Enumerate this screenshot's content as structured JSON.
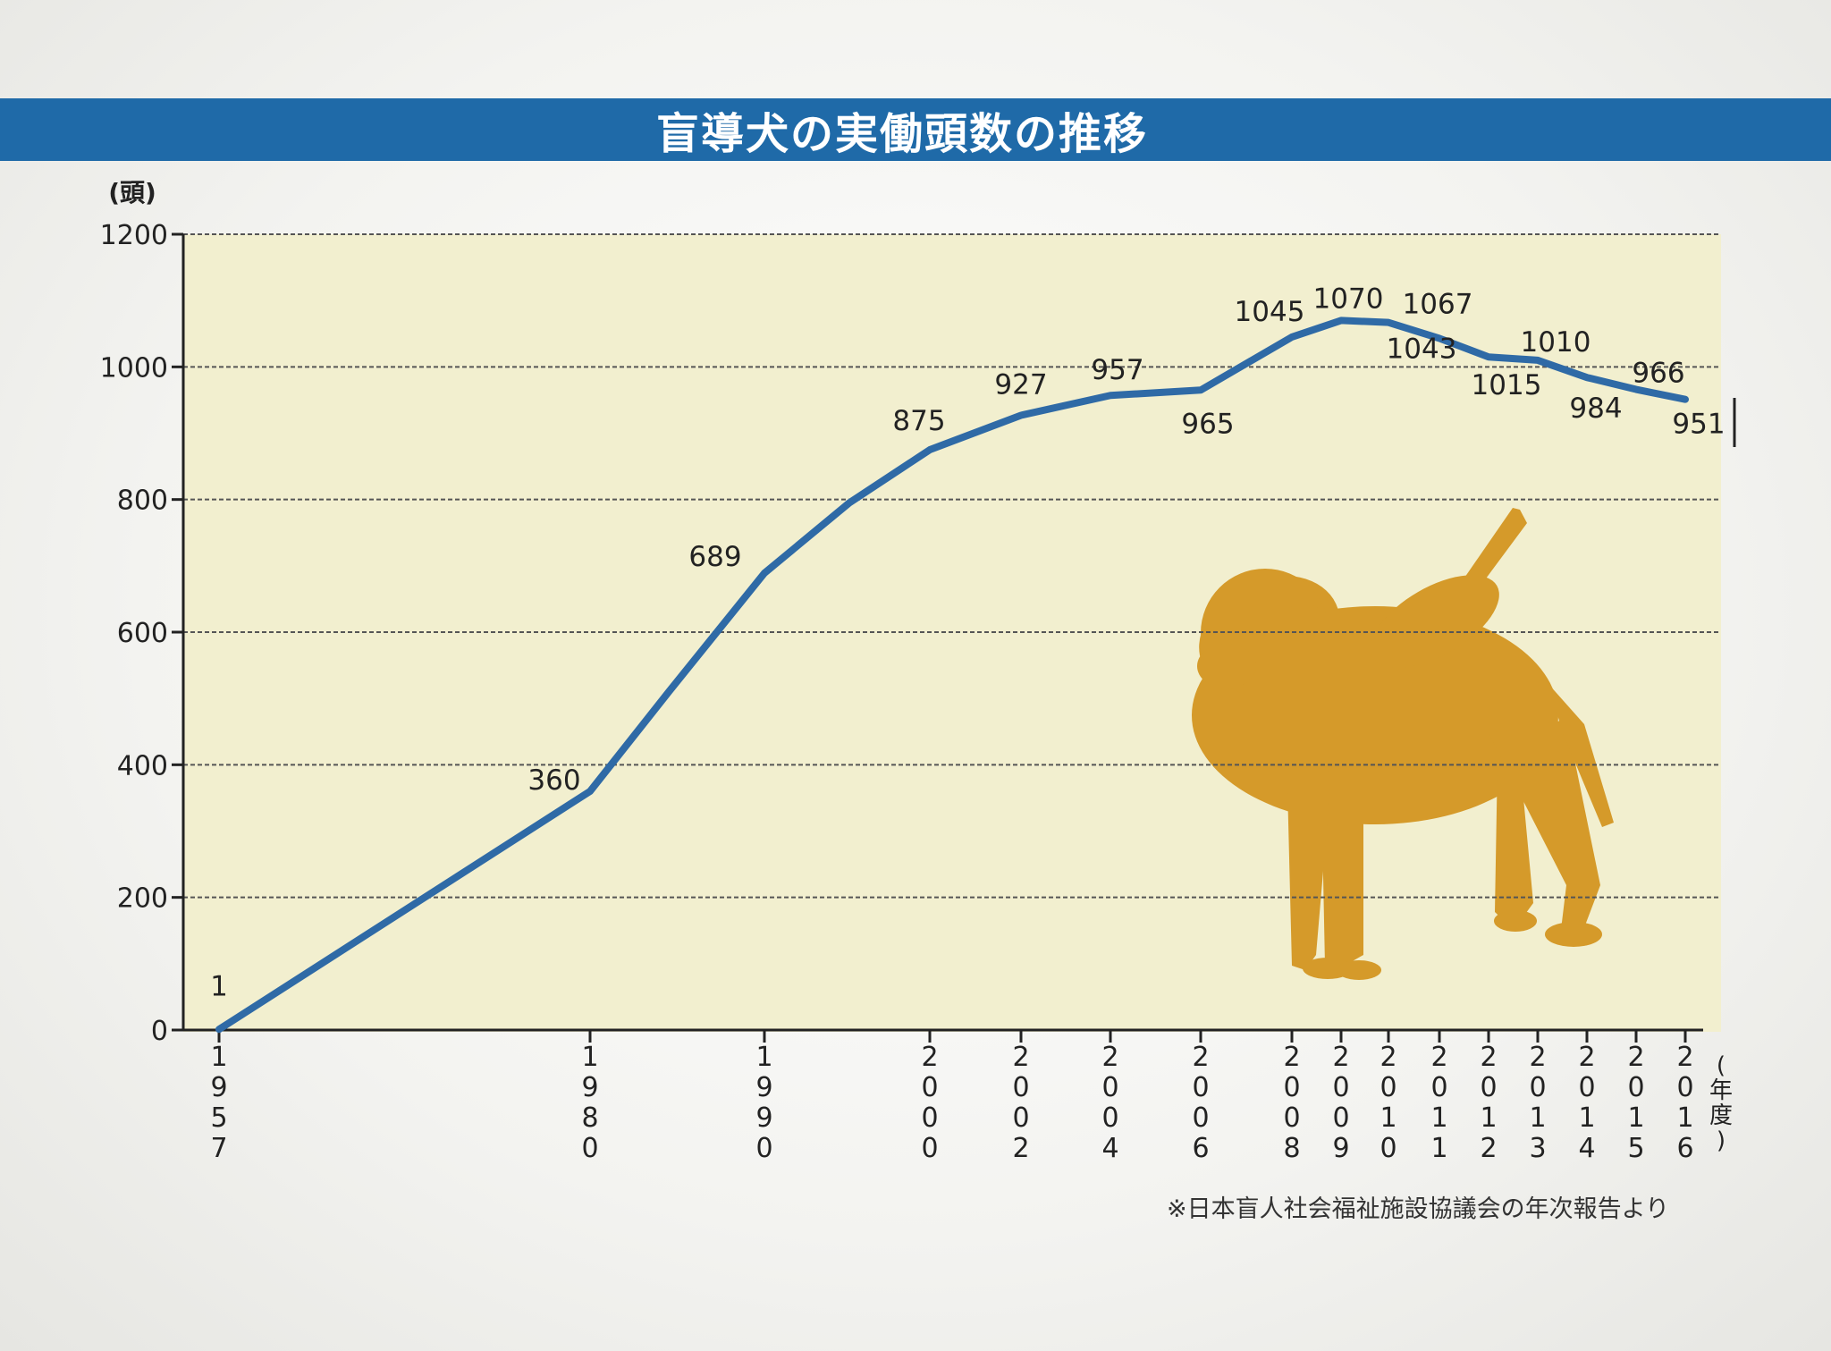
{
  "title": "盲導犬の実働頭数の推移",
  "source_note": "※日本盲人社会福祉施設協議会の年次報告より",
  "colors": {
    "title_bar": "#1f6aa8",
    "line": "#2f6aa6",
    "plot_bg": "#f2efcf",
    "dog": "#d59a2a"
  },
  "chart_data": {
    "type": "line",
    "title": "盲導犬の実働頭数の推移",
    "y_unit_label": "(頭)",
    "x_unit_label": "(年度)",
    "ylim": [
      0,
      1200
    ],
    "y_ticks": [
      "0",
      "200",
      "400",
      "600",
      "800",
      "1000",
      "1200"
    ],
    "grid": true,
    "x_tick_labels": [
      "1957",
      "1980",
      "1990",
      "2000",
      "2002",
      "2004",
      "2006",
      "2008",
      "2009",
      "2010",
      "2011",
      "2012",
      "2013",
      "2014",
      "2015",
      "2016"
    ],
    "series": [
      {
        "points": [
          {
            "x": 1957,
            "y": 1,
            "label": "1"
          },
          {
            "x": 1980,
            "y": 360,
            "label": "360"
          },
          {
            "x": 1985,
            "y": 510,
            "label": ""
          },
          {
            "x": 1990,
            "y": 689,
            "label": "689"
          },
          {
            "x": 1995,
            "y": 795,
            "label": ""
          },
          {
            "x": 2000,
            "y": 875,
            "label": "875"
          },
          {
            "x": 2002,
            "y": 927,
            "label": "927"
          },
          {
            "x": 2004,
            "y": 957,
            "label": "957"
          },
          {
            "x": 2006,
            "y": 965,
            "label": "965"
          },
          {
            "x": 2008,
            "y": 1045,
            "label": "1045"
          },
          {
            "x": 2009,
            "y": 1070,
            "label": "1070"
          },
          {
            "x": 2010,
            "y": 1067,
            "label": "1067"
          },
          {
            "x": 2011,
            "y": 1043,
            "label": "1043"
          },
          {
            "x": 2012,
            "y": 1015,
            "label": "1015"
          },
          {
            "x": 2013,
            "y": 1010,
            "label": "1010"
          },
          {
            "x": 2014,
            "y": 984,
            "label": "984"
          },
          {
            "x": 2015,
            "y": 966,
            "label": "966"
          },
          {
            "x": 2016,
            "y": 951,
            "label": "951"
          }
        ]
      }
    ]
  }
}
